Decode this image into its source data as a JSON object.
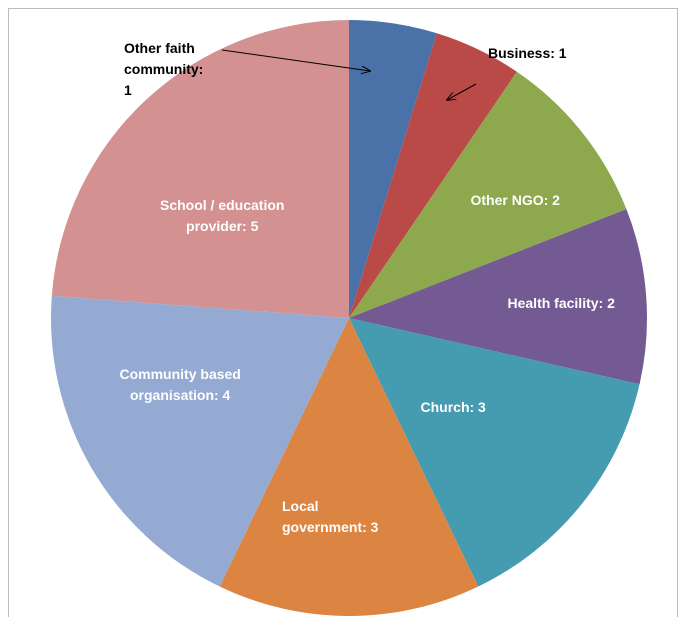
{
  "chart_data": {
    "type": "pie",
    "values": [
      1,
      1,
      2,
      2,
      3,
      3,
      4,
      5
    ],
    "value_labels": [
      "Other faith\ncommunity:\n1",
      "Business: 1",
      "Other NGO: 2",
      "Health facility: 2",
      "Church: 3",
      "Local\ngovernment: 3",
      "Community based\norganisation: 4",
      "School / education\nprovider: 5"
    ],
    "colors": [
      "#4a72a8",
      "#b94a48",
      "#8da84d",
      "#735a92",
      "#459bb0",
      "#dc8442",
      "#94aad3",
      "#d39191"
    ]
  }
}
